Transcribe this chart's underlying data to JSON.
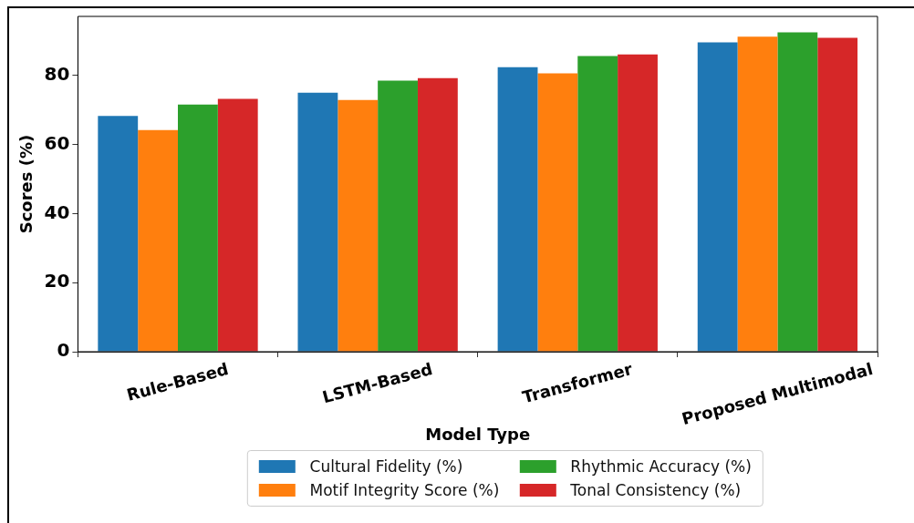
{
  "chart_data": {
    "type": "bar",
    "xlabel": "Model Type",
    "ylabel": "Scores (%)",
    "categories": [
      "Rule-Based",
      "LSTM-Based",
      "Transformer",
      "Proposed Multimodal"
    ],
    "series": [
      {
        "name": "Cultural Fidelity (%)",
        "color": "#1f77b4",
        "values": [
          68.3,
          75.0,
          82.4,
          89.6
        ]
      },
      {
        "name": "Motif Integrity Score (%)",
        "color": "#ff7f0e",
        "values": [
          64.2,
          72.9,
          80.6,
          91.2
        ]
      },
      {
        "name": "Rhythmic Accuracy (%)",
        "color": "#2ca02c",
        "values": [
          71.6,
          78.5,
          85.6,
          92.5
        ]
      },
      {
        "name": "Tonal Consistency (%)",
        "color": "#d62728",
        "values": [
          73.2,
          79.2,
          86.1,
          90.9
        ]
      }
    ],
    "ylim": [
      0,
      97.1
    ],
    "yticks": [
      0,
      20,
      40,
      60,
      80
    ],
    "grid": false,
    "legend": "bottom"
  }
}
